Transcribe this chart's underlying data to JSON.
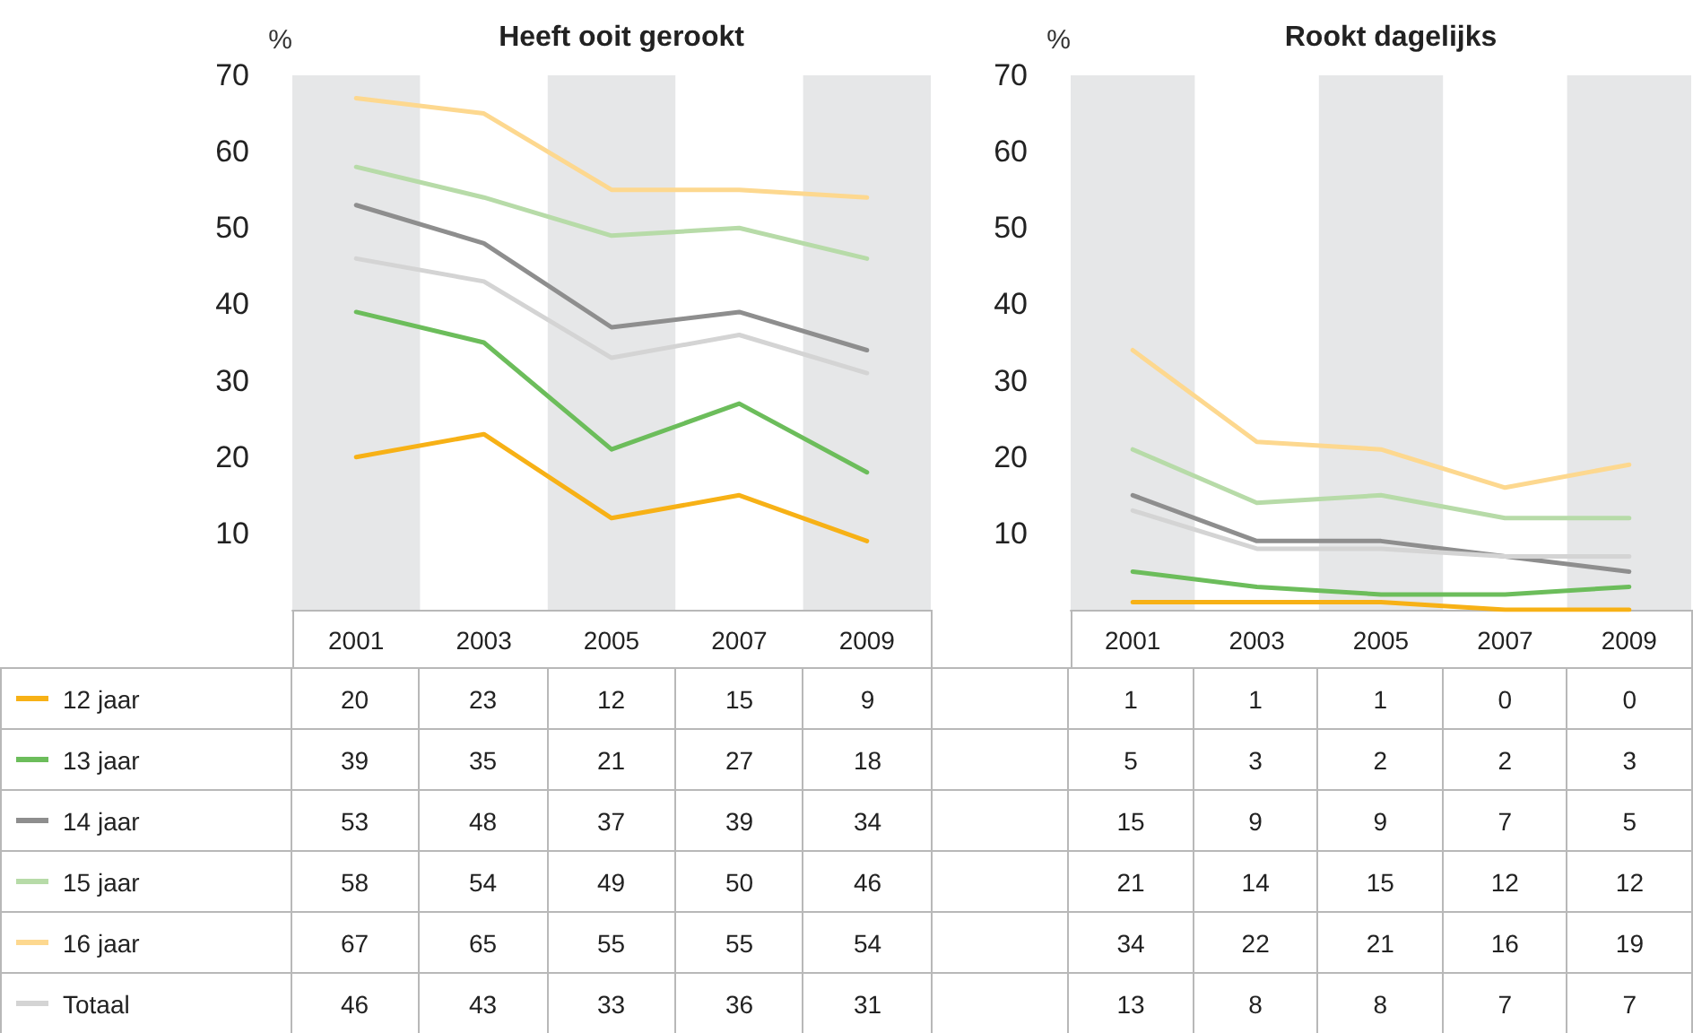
{
  "chart_data": [
    {
      "type": "line",
      "title": "Heeft ooit gerookt",
      "ylabel": "%",
      "categories": [
        "2001",
        "2003",
        "2005",
        "2007",
        "2009"
      ],
      "ylim": [
        0,
        70
      ],
      "yticks": [
        10,
        20,
        30,
        40,
        50,
        60,
        70
      ],
      "grid": false,
      "marker": "none",
      "legend": "bottom",
      "data_labels": true,
      "bands": [
        {
          "axis": "x",
          "from": "2001",
          "to": "2001",
          "color": "#e6e7e8"
        },
        {
          "axis": "x",
          "from": "2005",
          "to": "2005",
          "color": "#e6e7e8"
        },
        {
          "axis": "x",
          "from": "2009",
          "to": "2009",
          "color": "#e6e7e8"
        }
      ],
      "series": [
        {
          "name": "12 jaar",
          "color": "#f7b116",
          "values": [
            20,
            23,
            12,
            15,
            9
          ]
        },
        {
          "name": "13 jaar",
          "color": "#6cbd5b",
          "values": [
            39,
            35,
            21,
            27,
            18
          ]
        },
        {
          "name": "14 jaar",
          "color": "#8e8e8e",
          "values": [
            53,
            48,
            37,
            39,
            34
          ]
        },
        {
          "name": "15 jaar",
          "color": "#b7dba8",
          "values": [
            58,
            54,
            49,
            50,
            46
          ]
        },
        {
          "name": "16 jaar",
          "color": "#fdd88f",
          "values": [
            67,
            65,
            55,
            55,
            54
          ]
        },
        {
          "name": "Totaal",
          "color": "#d4d4d4",
          "values": [
            46,
            43,
            33,
            36,
            31
          ]
        }
      ]
    },
    {
      "type": "line",
      "title": "Rookt dagelijks",
      "ylabel": "%",
      "categories": [
        "2001",
        "2003",
        "2005",
        "2007",
        "2009"
      ],
      "ylim": [
        0,
        70
      ],
      "yticks": [
        10,
        20,
        30,
        40,
        50,
        60,
        70
      ],
      "grid": false,
      "marker": "none",
      "legend": false,
      "data_labels": true,
      "bands": [
        {
          "axis": "x",
          "from": "2001",
          "to": "2001",
          "color": "#e6e7e8"
        },
        {
          "axis": "x",
          "from": "2005",
          "to": "2005",
          "color": "#e6e7e8"
        },
        {
          "axis": "x",
          "from": "2009",
          "to": "2009",
          "color": "#e6e7e8"
        }
      ],
      "series": [
        {
          "color": "#f7b116",
          "values": [
            1,
            1,
            1,
            0,
            0
          ]
        },
        {
          "color": "#6cbd5b",
          "values": [
            5,
            3,
            2,
            2,
            3
          ]
        },
        {
          "color": "#8e8e8e",
          "values": [
            15,
            9,
            9,
            7,
            5
          ]
        },
        {
          "color": "#b7dba8",
          "values": [
            21,
            14,
            15,
            12,
            12
          ]
        },
        {
          "color": "#fdd88f",
          "values": [
            34,
            22,
            21,
            16,
            19
          ]
        },
        {
          "color": "#d4d4d4",
          "values": [
            13,
            8,
            8,
            7,
            7
          ]
        }
      ]
    }
  ]
}
